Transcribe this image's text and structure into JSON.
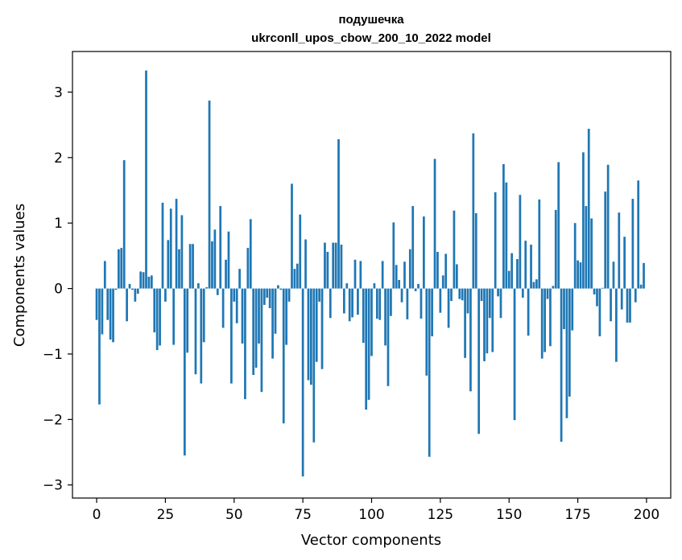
{
  "chart_data": {
    "type": "bar",
    "title": "подушечка",
    "subtitle": "ukrconll_upos_cbow_200_10_2022 model",
    "xlabel": "Vector components",
    "ylabel": "Components values",
    "xlim": [
      -8.8,
      208.8
    ],
    "ylim": [
      -3.2,
      3.62
    ],
    "xticks": [
      0,
      25,
      50,
      75,
      100,
      125,
      150,
      175,
      200
    ],
    "yticks": [
      -3,
      -2,
      -1,
      0,
      1,
      2,
      3
    ],
    "ytick_labels": [
      "−3",
      "−2",
      "−1",
      "0",
      "1",
      "2",
      "3"
    ],
    "bar_color": "#1f77b4",
    "x": [
      0,
      1,
      2,
      3,
      4,
      5,
      6,
      7,
      8,
      9,
      10,
      11,
      12,
      13,
      14,
      15,
      16,
      17,
      18,
      19,
      20,
      21,
      22,
      23,
      24,
      25,
      26,
      27,
      28,
      29,
      30,
      31,
      32,
      33,
      34,
      35,
      36,
      37,
      38,
      39,
      40,
      41,
      42,
      43,
      44,
      45,
      46,
      47,
      48,
      49,
      50,
      51,
      52,
      53,
      54,
      55,
      56,
      57,
      58,
      59,
      60,
      61,
      62,
      63,
      64,
      65,
      66,
      67,
      68,
      69,
      70,
      71,
      72,
      73,
      74,
      75,
      76,
      77,
      78,
      79,
      80,
      81,
      82,
      83,
      84,
      85,
      86,
      87,
      88,
      89,
      90,
      91,
      92,
      93,
      94,
      95,
      96,
      97,
      98,
      99,
      100,
      101,
      102,
      103,
      104,
      105,
      106,
      107,
      108,
      109,
      110,
      111,
      112,
      113,
      114,
      115,
      116,
      117,
      118,
      119,
      120,
      121,
      122,
      123,
      124,
      125,
      126,
      127,
      128,
      129,
      130,
      131,
      132,
      133,
      134,
      135,
      136,
      137,
      138,
      139,
      140,
      141,
      142,
      143,
      144,
      145,
      146,
      147,
      148,
      149,
      150,
      151,
      152,
      153,
      154,
      155,
      156,
      157,
      158,
      159,
      160,
      161,
      162,
      163,
      164,
      165,
      166,
      167,
      168,
      169,
      170,
      171,
      172,
      173,
      174,
      175,
      176,
      177,
      178,
      179,
      180,
      181,
      182,
      183,
      184,
      185,
      186,
      187,
      188,
      189,
      190,
      191,
      192,
      193,
      194,
      195,
      196,
      197,
      198,
      199
    ],
    "values": [
      -0.48,
      -1.77,
      -0.7,
      0.42,
      -0.48,
      -0.78,
      -0.82,
      -0.02,
      0.6,
      0.62,
      1.96,
      -0.5,
      0.07,
      -0.02,
      -0.2,
      -0.08,
      0.26,
      0.25,
      3.33,
      0.18,
      0.2,
      -0.67,
      -0.94,
      -0.87,
      1.31,
      -0.2,
      0.74,
      1.22,
      -0.86,
      1.37,
      0.6,
      1.12,
      -2.55,
      -0.98,
      0.68,
      0.68,
      -1.31,
      0.08,
      -1.45,
      -0.82,
      0.02,
      2.87,
      0.72,
      0.9,
      -0.1,
      1.26,
      -0.6,
      0.44,
      0.87,
      -1.45,
      -0.2,
      -0.53,
      0.3,
      -0.84,
      -1.69,
      0.62,
      1.06,
      -1.32,
      -1.21,
      -0.84,
      -1.58,
      -0.25,
      -0.14,
      -0.3,
      -1.07,
      -0.69,
      0.05,
      -0.02,
      -2.06,
      -0.86,
      -0.2,
      1.6,
      0.3,
      0.38,
      1.13,
      -2.87,
      0.75,
      -1.4,
      -1.47,
      -2.35,
      -1.12,
      -0.2,
      -1.23,
      0.7,
      0.56,
      -0.45,
      0.7,
      0.7,
      2.28,
      0.67,
      -0.38,
      0.08,
      -0.5,
      -0.44,
      0.44,
      -0.4,
      0.42,
      -0.83,
      -1.85,
      -1.7,
      -1.03,
      0.08,
      -0.46,
      -0.48,
      0.42,
      -0.87,
      -1.49,
      -0.42,
      1.01,
      0.36,
      0.13,
      -0.21,
      0.41,
      -0.47,
      0.6,
      1.26,
      -0.04,
      0.07,
      -0.46,
      1.1,
      -1.33,
      -2.57,
      -0.73,
      1.98,
      0.56,
      -0.37,
      0.2,
      0.53,
      -0.6,
      -0.19,
      1.19,
      0.37,
      -0.16,
      -0.18,
      -1.06,
      -0.38,
      -1.57,
      2.37,
      1.15,
      -2.22,
      -0.19,
      -1.11,
      -0.99,
      -0.45,
      -0.97,
      1.47,
      -0.12,
      -0.45,
      1.9,
      1.62,
      0.27,
      0.54,
      -2.01,
      0.45,
      1.43,
      -0.14,
      0.73,
      -0.72,
      0.67,
      0.1,
      0.14,
      1.36,
      -1.07,
      -0.97,
      -0.16,
      -0.88,
      0.04,
      1.2,
      1.93,
      -2.34,
      -0.62,
      -1.98,
      -1.65,
      -0.64,
      1.0,
      0.43,
      0.4,
      2.08,
      1.26,
      2.44,
      1.07,
      -0.09,
      -0.27,
      -0.73,
      0.01,
      1.48,
      1.89,
      -0.5,
      0.41,
      -1.12,
      1.16,
      -0.32,
      0.79,
      -0.52,
      -0.52,
      1.37,
      -0.21,
      1.65,
      0.06,
      0.39
    ]
  }
}
